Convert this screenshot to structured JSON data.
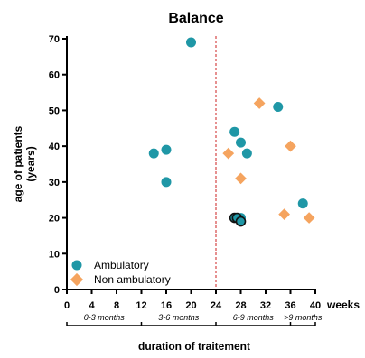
{
  "chart_data": {
    "type": "scatter",
    "title": "Balance",
    "xlabel": "duration of traitement",
    "x_unit": "weeks",
    "ylabel_lines": [
      "age of patients",
      "(years)"
    ],
    "xlim": [
      0,
      40
    ],
    "ylim": [
      0,
      70
    ],
    "x_ticks": [
      0,
      4,
      8,
      12,
      16,
      20,
      24,
      28,
      32,
      36,
      40
    ],
    "y_ticks": [
      0,
      10,
      20,
      30,
      40,
      50,
      60,
      70
    ],
    "reference_line": {
      "x": 24,
      "color": "#cc2222",
      "style": "dashed"
    },
    "duration_ranges": [
      {
        "label": "0-3 months",
        "from": 0,
        "to": 12
      },
      {
        "label": "3-6 months",
        "from": 12,
        "to": 24
      },
      {
        "label": "6-9 months",
        "from": 24,
        "to": 36
      },
      {
        "label": ">9 months",
        "from": 36,
        "to": 40
      }
    ],
    "legend_position": "bottom-left",
    "series": [
      {
        "name": "Ambulatory",
        "marker": "circle",
        "color": "#1f97a6",
        "points": [
          {
            "x": 20,
            "y": 69
          },
          {
            "x": 14,
            "y": 38
          },
          {
            "x": 16,
            "y": 39
          },
          {
            "x": 16,
            "y": 30
          },
          {
            "x": 27,
            "y": 44
          },
          {
            "x": 28,
            "y": 41
          },
          {
            "x": 29,
            "y": 38
          },
          {
            "x": 34,
            "y": 51
          },
          {
            "x": 38,
            "y": 24
          },
          {
            "x": 28,
            "y": 20
          },
          {
            "x": 27,
            "y": 20,
            "outlined": true
          },
          {
            "x": 27.4,
            "y": 20,
            "outlined": true
          },
          {
            "x": 28,
            "y": 19,
            "outlined": true
          }
        ]
      },
      {
        "name": "Non ambulatory",
        "marker": "diamond",
        "color": "#f5a45f",
        "points": [
          {
            "x": 31,
            "y": 52
          },
          {
            "x": 36,
            "y": 40
          },
          {
            "x": 26,
            "y": 38
          },
          {
            "x": 28,
            "y": 31
          },
          {
            "x": 35,
            "y": 21
          },
          {
            "x": 39,
            "y": 20
          }
        ]
      }
    ]
  }
}
